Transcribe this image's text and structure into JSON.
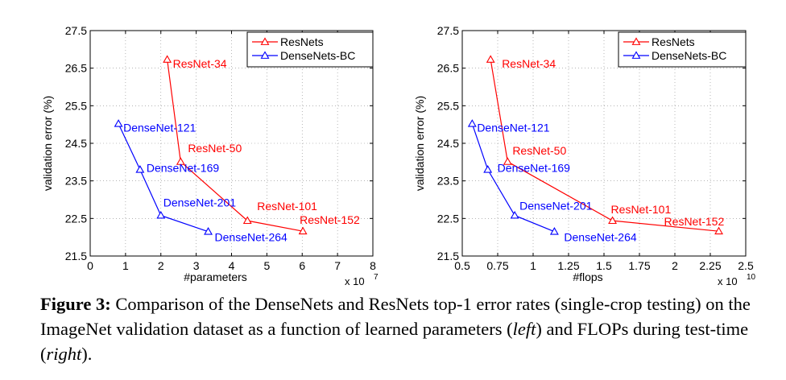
{
  "chart_data": [
    {
      "type": "line",
      "xlabel": "#parameters",
      "ylabel": "validation error (%)",
      "x_exponent": "x 10",
      "x_exponent_power": "7",
      "xlim": [
        0,
        8
      ],
      "ylim": [
        21.5,
        27.5
      ],
      "x_ticks": [
        0,
        1,
        2,
        3,
        4,
        5,
        6,
        7,
        8
      ],
      "x_tick_labels": [
        "0",
        "1",
        "2",
        "3",
        "4",
        "5",
        "6",
        "7",
        "8"
      ],
      "y_ticks": [
        21.5,
        22.5,
        23.5,
        24.5,
        25.5,
        26.5,
        27.5
      ],
      "y_tick_labels": [
        "21.5",
        "22.5",
        "23.5",
        "24.5",
        "25.5",
        "26.5",
        "27.5"
      ],
      "grid": true,
      "legend_position": "top-right",
      "series": [
        {
          "name": "ResNets",
          "color": "#ff0000",
          "points": [
            {
              "label": "ResNet-34",
              "x": 2.18,
              "y": 26.73
            },
            {
              "label": "ResNet-50",
              "x": 2.56,
              "y": 24.01
            },
            {
              "label": "ResNet-101",
              "x": 4.45,
              "y": 22.44
            },
            {
              "label": "ResNet-152",
              "x": 6.02,
              "y": 22.16
            }
          ]
        },
        {
          "name": "DenseNets-BC",
          "color": "#0000ff",
          "points": [
            {
              "label": "DenseNet-121",
              "x": 0.8,
              "y": 25.02
            },
            {
              "label": "DenseNet-169",
              "x": 1.41,
              "y": 23.8
            },
            {
              "label": "DenseNet-201",
              "x": 2.0,
              "y": 22.58
            },
            {
              "label": "DenseNet-264",
              "x": 3.34,
              "y": 22.15
            }
          ]
        }
      ]
    },
    {
      "type": "line",
      "xlabel": "#flops",
      "ylabel": "validation error (%)",
      "x_exponent": "x 10",
      "x_exponent_power": "10",
      "xlim": [
        0.5,
        2.5
      ],
      "ylim": [
        21.5,
        27.5
      ],
      "x_ticks": [
        0.5,
        0.75,
        1,
        1.25,
        1.5,
        1.75,
        2,
        2.25,
        2.5
      ],
      "x_tick_labels": [
        "0.5",
        "0.75",
        "1",
        "1.25",
        "1.5",
        "1.75",
        "2",
        "2.25",
        "2.5"
      ],
      "y_ticks": [
        21.5,
        22.5,
        23.5,
        24.5,
        25.5,
        26.5,
        27.5
      ],
      "y_tick_labels": [
        "21.5",
        "22.5",
        "23.5",
        "24.5",
        "25.5",
        "26.5",
        "27.5"
      ],
      "grid": true,
      "legend_position": "top-right",
      "series": [
        {
          "name": "ResNets",
          "color": "#ff0000",
          "points": [
            {
              "label": "ResNet-34",
              "x": 0.7,
              "y": 26.73
            },
            {
              "label": "ResNet-50",
              "x": 0.82,
              "y": 24.01
            },
            {
              "label": "ResNet-101",
              "x": 1.56,
              "y": 22.44
            },
            {
              "label": "ResNet-152",
              "x": 2.31,
              "y": 22.16
            }
          ]
        },
        {
          "name": "DenseNets-BC",
          "color": "#0000ff",
          "points": [
            {
              "label": "DenseNet-121",
              "x": 0.57,
              "y": 25.02
            },
            {
              "label": "DenseNet-169",
              "x": 0.68,
              "y": 23.8
            },
            {
              "label": "DenseNet-201",
              "x": 0.87,
              "y": 22.58
            },
            {
              "label": "DenseNet-264",
              "x": 1.15,
              "y": 22.15
            }
          ]
        }
      ]
    }
  ],
  "caption": {
    "label": "Figure 3:",
    "text_1": " Comparison of the DenseNets and ResNets top-1 error rates (single-crop testing) on the ImageNet validation dataset as a function of learned parameters (",
    "italic_1": "left",
    "text_2": ") and FLOPs during test-time (",
    "italic_2": "right",
    "text_3": ")."
  }
}
